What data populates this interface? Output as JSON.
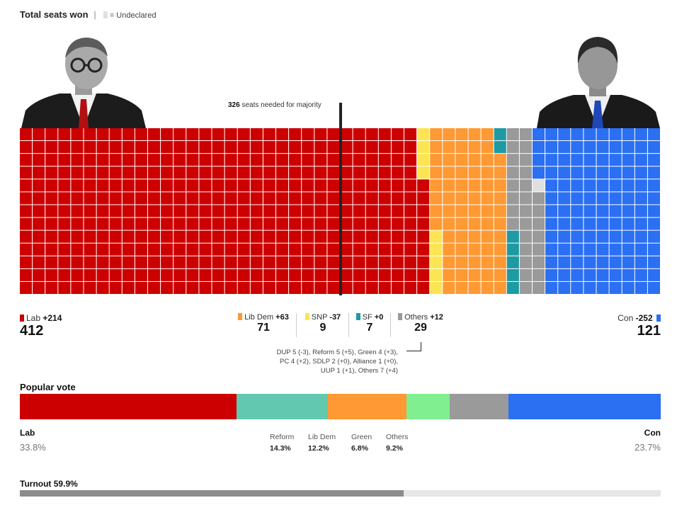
{
  "header": {
    "title": "Total seats won",
    "legend_label": "= Undeclared"
  },
  "majority": {
    "seats": "326",
    "label": "seats needed for majority"
  },
  "leaders": {
    "left": "portrait-labour-leader",
    "right": "portrait-conservative-leader"
  },
  "colors": {
    "Lab": "#cc0000",
    "LibDem": "#ff9933",
    "SNP": "#fce553",
    "SF": "#1e9aa2",
    "Others": "#9a9a9a",
    "Con": "#2b6ff2",
    "Undeclared": "#e0e0e0",
    "Reform": "#62c9b0",
    "Green": "#7fef8f",
    "TurnoutFill": "#8c8c8c",
    "TurnoutTrack": "#e6e6e6"
  },
  "parties": {
    "lab": {
      "name": "Lab",
      "change": "+214",
      "seats": "412"
    },
    "libdem": {
      "name": "Lib Dem",
      "change": "+63",
      "seats": "71"
    },
    "snp": {
      "name": "SNP",
      "change": "-37",
      "seats": "9"
    },
    "sf": {
      "name": "SF",
      "change": "+0",
      "seats": "7"
    },
    "others": {
      "name": "Others",
      "change": "+12",
      "seats": "29"
    },
    "con": {
      "name": "Con",
      "change": "-252",
      "seats": "121"
    }
  },
  "others_detail": {
    "line1": "DUP 5 (-3), Reform 5 (+5), Green 4 (+3),",
    "line2": "PC 4 (+2), SDLP 2 (+0), Alliance 1 (+0),",
    "line3": "UUP 1 (+1), Others 7 (+4)"
  },
  "popular_vote": {
    "title": "Popular vote",
    "lab": {
      "name": "Lab",
      "pct": "33.8%"
    },
    "con": {
      "name": "Con",
      "pct": "23.7%"
    },
    "reform": {
      "name": "Reform",
      "pct": "14.3%"
    },
    "libdem": {
      "name": "Lib Dem",
      "pct": "12.2%"
    },
    "green": {
      "name": "Green",
      "pct": "6.8%"
    },
    "others": {
      "name": "Others",
      "pct": "9.2%"
    }
  },
  "turnout": {
    "label": "Turnout 59.9%",
    "value": 59.9
  },
  "chart_data": [
    {
      "type": "waffle",
      "title": "Total seats won",
      "categories": [
        "Lab",
        "Lib Dem",
        "SNP",
        "SF",
        "Others",
        "Undeclared",
        "Con"
      ],
      "values": [
        412,
        71,
        9,
        7,
        29,
        1,
        121
      ],
      "changes": [
        "+214",
        "+63",
        "-37",
        "+0",
        "+12",
        null,
        "-252"
      ],
      "majority_threshold": 326,
      "total_seats": 650
    },
    {
      "type": "bar",
      "title": "Popular vote",
      "orientation": "stacked-horizontal",
      "categories": [
        "Lab",
        "Reform",
        "Lib Dem",
        "Green",
        "Others",
        "Con"
      ],
      "values": [
        33.8,
        14.3,
        12.2,
        6.8,
        9.2,
        23.7
      ],
      "unit": "%"
    },
    {
      "type": "bar",
      "title": "Turnout 59.9%",
      "values": [
        59.9
      ],
      "ylim": [
        0,
        100
      ]
    }
  ]
}
